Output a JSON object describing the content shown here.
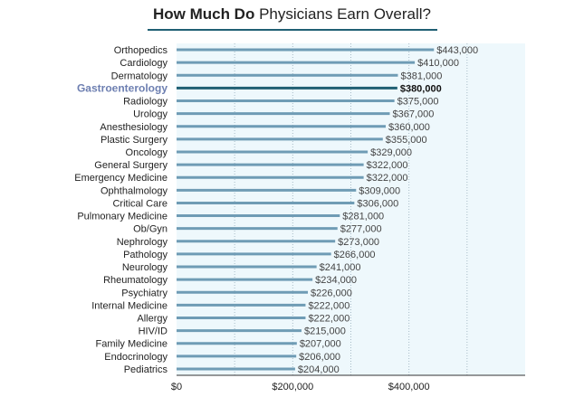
{
  "title_bold": "How Much Do",
  "title_rest": "Physicians Earn Overall?",
  "colors": {
    "bar": "#6f9cb5",
    "bar_highlight": "#1f5f73",
    "highlight_label": "#6d7fb1",
    "plot_bg": "#eef8fc",
    "grid": "#a8bcc8",
    "title_rule": "#1f5f73"
  },
  "chart_data": {
    "type": "bar",
    "orientation": "horizontal",
    "title": "How Much Do Physicians Earn Overall?",
    "highlight": "Gastroenterology",
    "categories": [
      "Orthopedics",
      "Cardiology",
      "Dermatology",
      "Gastroenterology",
      "Radiology",
      "Urology",
      "Anesthesiology",
      "Plastic Surgery",
      "Oncology",
      "General Surgery",
      "Emergency Medicine",
      "Ophthalmology",
      "Critical Care",
      "Pulmonary Medicine",
      "Ob/Gyn",
      "Nephrology",
      "Pathology",
      "Neurology",
      "Rheumatology",
      "Psychiatry",
      "Internal Medicine",
      "Allergy",
      "HIV/ID",
      "Family Medicine",
      "Endocrinology",
      "Pediatrics"
    ],
    "values": [
      443000,
      410000,
      381000,
      380000,
      375000,
      367000,
      360000,
      355000,
      329000,
      322000,
      322000,
      309000,
      306000,
      281000,
      277000,
      273000,
      266000,
      241000,
      234000,
      226000,
      222000,
      222000,
      215000,
      207000,
      206000,
      204000
    ],
    "value_labels": [
      "$443,000",
      "$410,000",
      "$381,000",
      "$380,000",
      "$375,000",
      "$367,000",
      "$360,000",
      "$355,000",
      "$329,000",
      "$322,000",
      "$322,000",
      "$309,000",
      "$306,000",
      "$281,000",
      "$277,000",
      "$273,000",
      "$266,000",
      "$241,000",
      "$234,000",
      "$226,000",
      "$222,000",
      "$222,000",
      "$215,000",
      "$207,000",
      "$206,000",
      "$204,000"
    ],
    "xlim": [
      0,
      600000
    ],
    "xticks": [
      0,
      200000,
      400000
    ],
    "xtick_labels": [
      "$0",
      "$200,000",
      "$400,000"
    ],
    "grid": true
  }
}
